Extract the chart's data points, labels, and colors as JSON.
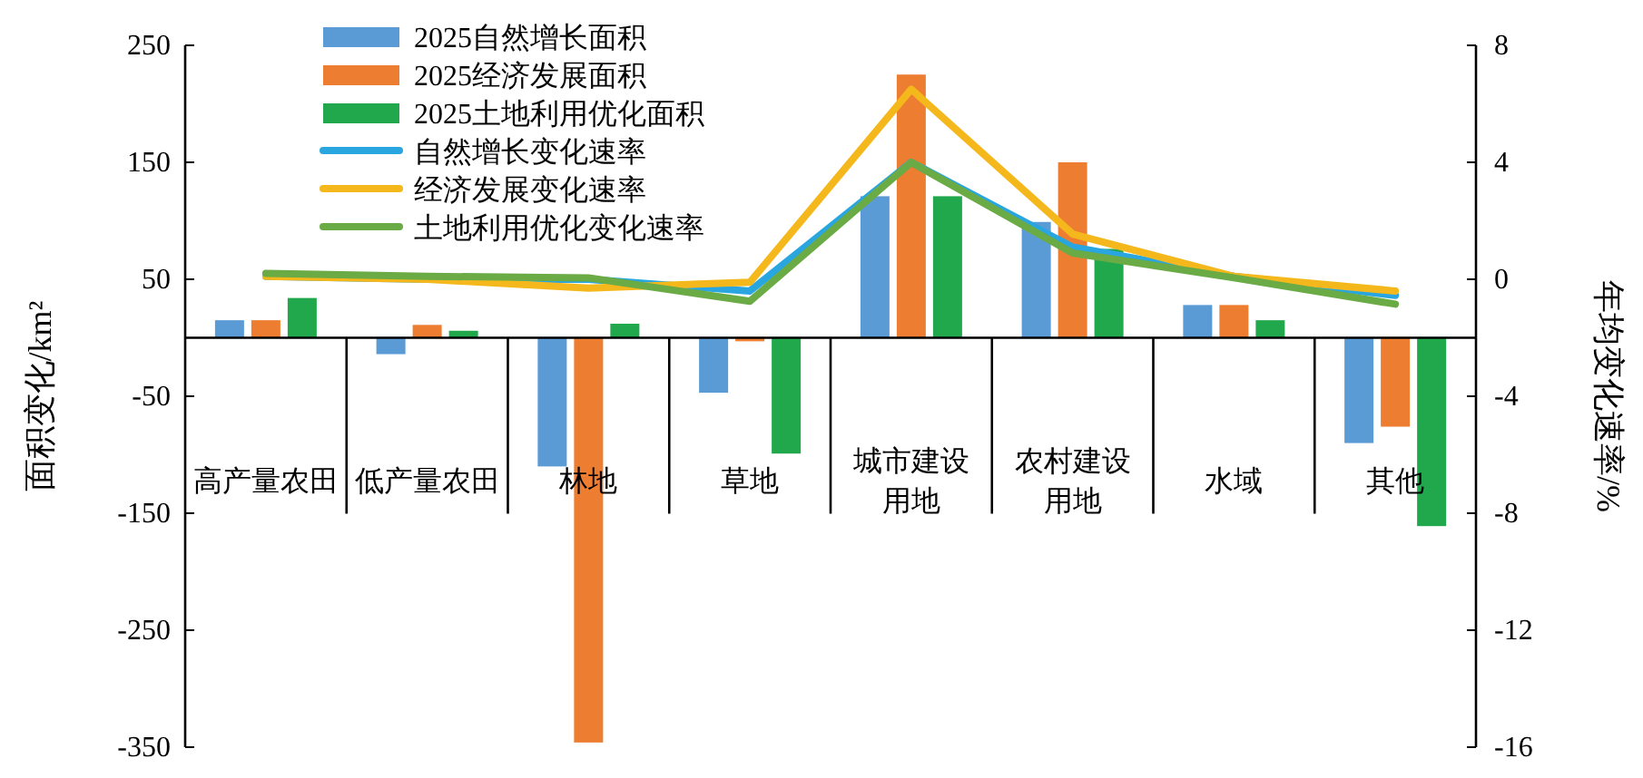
{
  "chart_data": {
    "type": "bar",
    "categories": [
      "高产量农田",
      "低产量农田",
      "林地",
      "草地",
      "城市建设用地",
      "农村建设用地",
      "水域",
      "其他"
    ],
    "series": [
      {
        "name": "2025自然增长面积",
        "color": "#5b9bd5",
        "values": [
          15,
          -14,
          -110,
          -47,
          121,
          99,
          28,
          -90
        ]
      },
      {
        "name": "2025经济发展面积",
        "color": "#ed7d31",
        "values": [
          15,
          11,
          -346,
          -3,
          225,
          150,
          28,
          -76
        ]
      },
      {
        "name": "2025土地利用优化面积",
        "color": "#22a84c",
        "values": [
          34,
          6,
          12,
          -99,
          121,
          76,
          15,
          -161
        ]
      },
      {
        "name": "自然增长变化速率",
        "type": "line",
        "axis": "y2",
        "color": "#29a6e0",
        "values": [
          0.1,
          0,
          0,
          -0.4,
          4.0,
          1.1,
          0.1,
          -0.55
        ]
      },
      {
        "name": "经济发展变化速率",
        "type": "line",
        "axis": "y2",
        "color": "#f5b81c",
        "values": [
          0.1,
          0,
          -0.3,
          -0.1,
          6.5,
          1.55,
          0.1,
          -0.4
        ]
      },
      {
        "name": "土地利用优化变化速率",
        "type": "line",
        "axis": "y2",
        "color": "#6aab45",
        "values": [
          0.2,
          0.1,
          0.05,
          -0.75,
          4.0,
          0.9,
          0.05,
          -0.85
        ]
      }
    ],
    "ylabel": "面积变化/km²",
    "y2label": "年均变化速率/%",
    "ylim": [
      -350,
      250
    ],
    "yticks": [
      -350,
      -250,
      -150,
      -50,
      50,
      150,
      250
    ],
    "y2lim": [
      -16,
      8
    ],
    "y2ticks": [
      -16,
      -12,
      -8,
      -4,
      0,
      4,
      8
    ],
    "legend": "top left",
    "grid": false,
    "marker": "none",
    "line_style": "solid"
  }
}
